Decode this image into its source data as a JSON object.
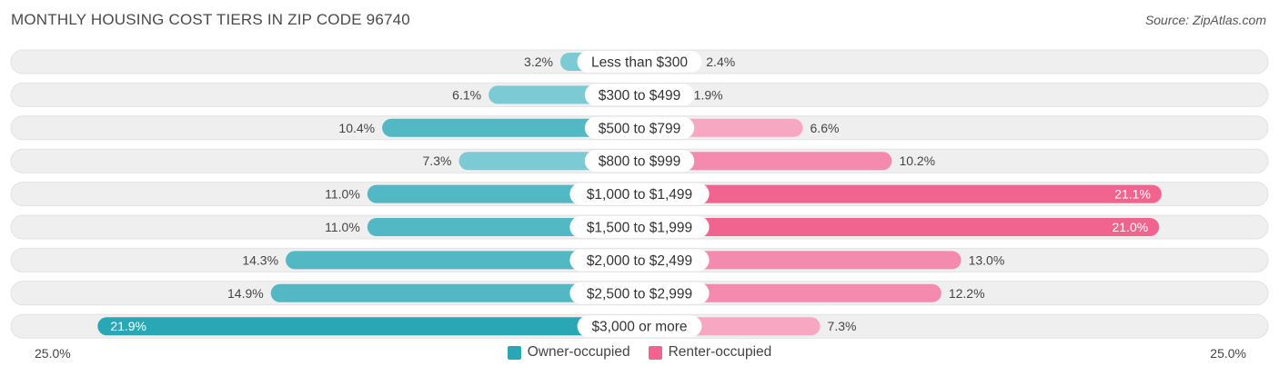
{
  "title": "MONTHLY HOUSING COST TIERS IN ZIP CODE 96740",
  "source": "Source: ZipAtlas.com",
  "legend": {
    "owner": "Owner-occupied",
    "renter": "Renter-occupied"
  },
  "axis": {
    "min_label": "25.0%",
    "max_label": "25.0%"
  },
  "colors": {
    "owner_light": "#7ccbd4",
    "owner_dark": "#2aa7b5",
    "renter_light": "#f7a7c2",
    "renter_dark": "#f0648f",
    "row_bg": "#efefef"
  },
  "chart_data": {
    "type": "bar",
    "orientation": "diverging-horizontal",
    "max": 25.0,
    "categories": [
      "Less than $300",
      "$300 to $499",
      "$500 to $799",
      "$800 to $999",
      "$1,000 to $1,499",
      "$1,500 to $1,999",
      "$2,000 to $2,499",
      "$2,500 to $2,999",
      "$3,000 or more"
    ],
    "series": [
      {
        "name": "Owner-occupied",
        "values": [
          3.2,
          6.1,
          10.4,
          7.3,
          11.0,
          11.0,
          14.3,
          14.9,
          21.9
        ],
        "labels": [
          "3.2%",
          "6.1%",
          "10.4%",
          "7.3%",
          "11.0%",
          "11.0%",
          "14.3%",
          "14.9%",
          "21.9%"
        ]
      },
      {
        "name": "Renter-occupied",
        "values": [
          2.4,
          1.9,
          6.6,
          10.2,
          21.1,
          21.0,
          13.0,
          12.2,
          7.3
        ],
        "labels": [
          "2.4%",
          "1.9%",
          "6.6%",
          "10.2%",
          "21.1%",
          "21.0%",
          "13.0%",
          "12.2%",
          "7.3%"
        ]
      }
    ]
  }
}
